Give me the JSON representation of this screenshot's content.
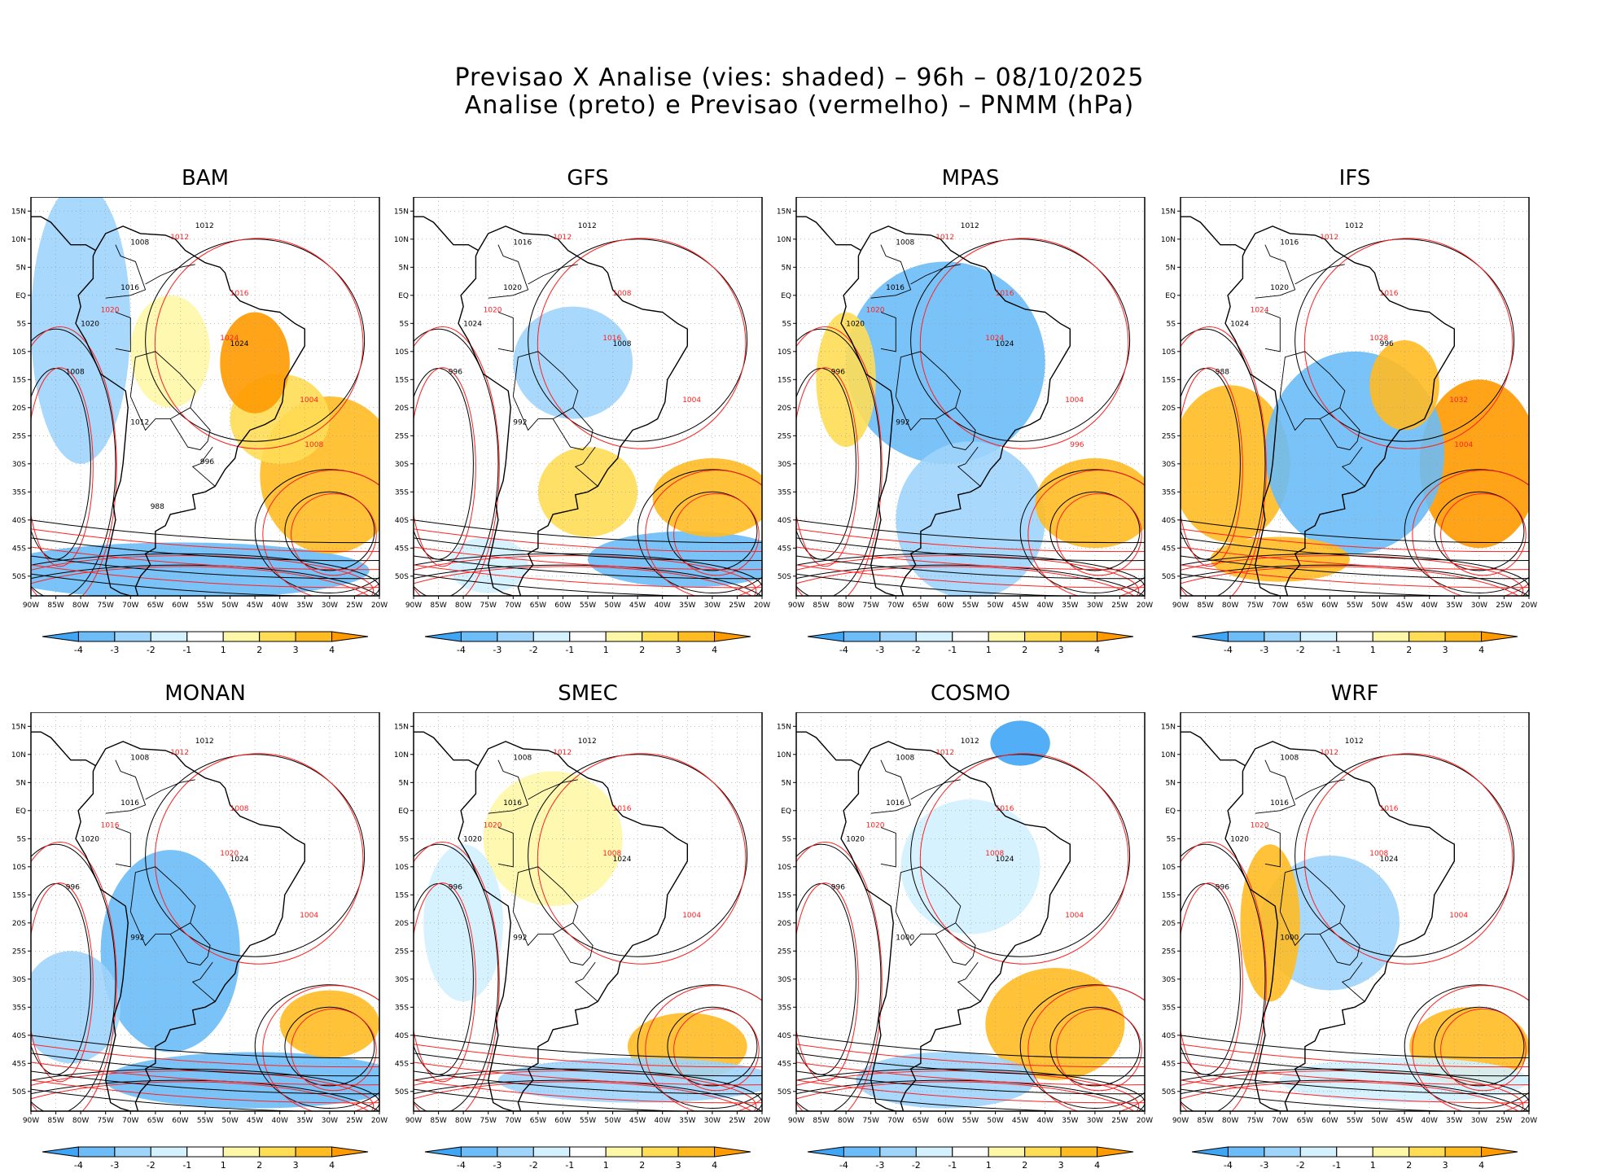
{
  "figure": {
    "title_line1": "Previsao X Analise (vies: shaded) – 96h – 08/10/2025",
    "title_line2": "Analise (preto) e Previsao (vermelho) – PNMM (hPa)"
  },
  "axes": {
    "lon_labels": [
      "90W",
      "85W",
      "80W",
      "75W",
      "70W",
      "65W",
      "60W",
      "55W",
      "50W",
      "45W",
      "40W",
      "35W",
      "30W",
      "25W",
      "20W"
    ],
    "lat_labels": [
      "15N",
      "10N",
      "5N",
      "EQ",
      "5S",
      "10S",
      "15S",
      "20S",
      "25S",
      "30S",
      "35S",
      "40S",
      "45S",
      "50S"
    ]
  },
  "colorbar": {
    "ticks": [
      "-4",
      "-3",
      "-2",
      "-1",
      "1",
      "2",
      "3",
      "4"
    ],
    "colors": [
      "#3fa5f5",
      "#6cbcf7",
      "#9fd4fb",
      "#d3f1ff",
      "#ffffff",
      "#fff7a8",
      "#ffdd55",
      "#ffbb22",
      "#ff9a00"
    ]
  },
  "contour_colors": {
    "analysis": "#000000",
    "forecast": "#ff2020"
  },
  "panels": [
    {
      "id": "bam",
      "name": "BAM",
      "labels_black": [
        "1012",
        "1008",
        "1016",
        "1020",
        "1024",
        "1008",
        "1012",
        "996",
        "988"
      ],
      "labels_red": [
        "1012",
        "1016",
        "1020",
        "1024",
        "1004",
        "1008"
      ]
    },
    {
      "id": "gfs",
      "name": "GFS",
      "labels_black": [
        "1012",
        "1016",
        "1020",
        "1024",
        "1008",
        "996",
        "992"
      ],
      "labels_red": [
        "1012",
        "1008",
        "1020",
        "1016",
        "1004"
      ]
    },
    {
      "id": "mpas",
      "name": "MPAS",
      "labels_black": [
        "1012",
        "1008",
        "1016",
        "1020",
        "1024",
        "996",
        "992"
      ],
      "labels_red": [
        "1012",
        "1016",
        "1020",
        "1024",
        "1004",
        "996"
      ]
    },
    {
      "id": "ifs",
      "name": "IFS",
      "labels_black": [
        "1012",
        "1016",
        "1020",
        "1024",
        "996",
        "988"
      ],
      "labels_red": [
        "1012",
        "1016",
        "1024",
        "1028",
        "1032",
        "1004"
      ]
    },
    {
      "id": "monan",
      "name": "MONAN",
      "labels_black": [
        "1012",
        "1008",
        "1016",
        "1020",
        "1024",
        "996",
        "992"
      ],
      "labels_red": [
        "1012",
        "1008",
        "1016",
        "1020",
        "1004"
      ]
    },
    {
      "id": "smec",
      "name": "SMEC",
      "labels_black": [
        "1012",
        "1008",
        "1016",
        "1020",
        "1024",
        "996",
        "992"
      ],
      "labels_red": [
        "1012",
        "1016",
        "1020",
        "1008",
        "1004"
      ]
    },
    {
      "id": "cosmo",
      "name": "COSMO",
      "labels_black": [
        "1012",
        "1008",
        "1016",
        "1020",
        "1024",
        "996",
        "1000"
      ],
      "labels_red": [
        "1012",
        "1016",
        "1020",
        "1008",
        "1004"
      ]
    },
    {
      "id": "wrf",
      "name": "WRF",
      "labels_black": [
        "1012",
        "1008",
        "1016",
        "1020",
        "1024",
        "996",
        "1000"
      ],
      "labels_red": [
        "1012",
        "1016",
        "1020",
        "1008",
        "1004"
      ]
    }
  ]
}
